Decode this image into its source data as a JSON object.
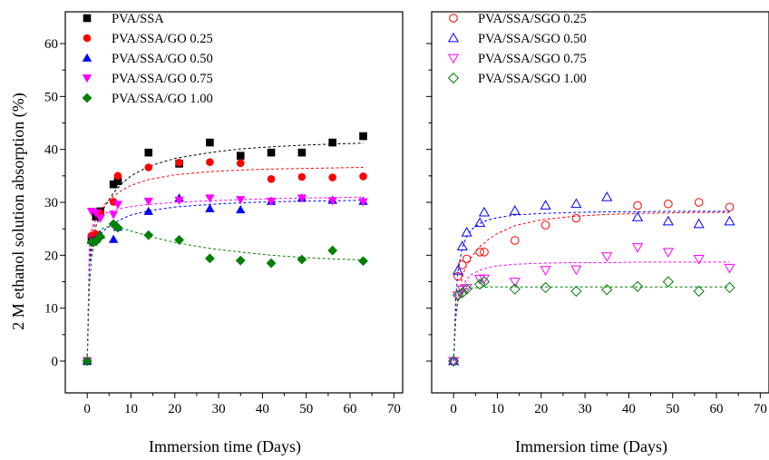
{
  "chart_data": [
    {
      "type": "scatter",
      "xlabel": "Immersion time (Days)",
      "ylabel": "2 M ethanol solution absorption (%)",
      "xlim": [
        -5,
        72
      ],
      "ylim": [
        -6,
        66
      ],
      "xticks": [
        0,
        10,
        20,
        30,
        40,
        50,
        60,
        70
      ],
      "yticks": [
        0,
        10,
        20,
        30,
        40,
        50,
        60
      ],
      "legend_position": "top-left",
      "series": [
        {
          "name": "PVA/SSA",
          "marker": "square",
          "filled": true,
          "color": "#000000",
          "x": [
            0,
            1,
            2,
            3,
            6,
            7,
            14,
            21,
            28,
            35,
            42,
            49,
            56,
            63
          ],
          "y": [
            0,
            23.2,
            27.3,
            28.3,
            33.4,
            34.0,
            39.4,
            37.3,
            41.3,
            38.8,
            39.4,
            39.4,
            41.3,
            42.5
          ],
          "fit": {
            "x": [
              0,
              0.5,
              1,
              2,
              3,
              4,
              6,
              8,
              10,
              14,
              20,
              28,
              35,
              42,
              49,
              56,
              63
            ],
            "y": [
              0,
              18.5,
              22.0,
              25.5,
              27.5,
              29.2,
              31.8,
              33.6,
              35.0,
              36.8,
              38.3,
              39.4,
              40.1,
              40.5,
              40.8,
              41.0,
              41.2
            ]
          }
        },
        {
          "name": "PVA/SSA/GO 0.25",
          "marker": "circle",
          "filled": true,
          "color": "#ff0000",
          "x": [
            0,
            1,
            2,
            3,
            6,
            7,
            14,
            21,
            28,
            35,
            42,
            49,
            56,
            63
          ],
          "y": [
            0,
            23.7,
            24.0,
            28.0,
            30.1,
            35.0,
            36.6,
            37.5,
            37.6,
            37.4,
            34.4,
            34.8,
            34.7,
            34.9
          ],
          "fit": {
            "x": [
              0,
              0.5,
              1,
              2,
              3,
              4,
              6,
              8,
              10,
              14,
              20,
              28,
              35,
              42,
              49,
              56,
              63
            ],
            "y": [
              0,
              19.5,
              23.5,
              27.0,
              28.5,
              29.6,
              31.2,
              32.3,
              33.2,
              34.3,
              35.2,
              35.8,
              36.1,
              36.3,
              36.4,
              36.5,
              36.6
            ]
          }
        },
        {
          "name": "PVA/SSA/GO 0.50",
          "marker": "triangle-up",
          "filled": true,
          "color": "#0000ff",
          "x": [
            0,
            1,
            2,
            3,
            6,
            7,
            14,
            21,
            28,
            35,
            42,
            49,
            56,
            63
          ],
          "y": [
            0,
            22.8,
            23.0,
            23.8,
            23.0,
            25.3,
            28.3,
            30.8,
            28.8,
            28.6,
            30.2,
            30.8,
            30.4,
            30.2
          ],
          "fit": {
            "x": [
              0,
              0.5,
              1,
              2,
              3,
              4,
              6,
              8,
              10,
              14,
              20,
              28,
              35,
              42,
              49,
              56,
              63
            ],
            "y": [
              0,
              18.0,
              21.0,
              23.0,
              24.0,
              24.8,
              26.0,
              26.9,
              27.6,
              28.4,
              29.1,
              29.6,
              29.9,
              30.1,
              30.2,
              30.3,
              30.4
            ]
          }
        },
        {
          "name": "PVA/SSA/GO 0.75",
          "marker": "triangle-down",
          "filled": true,
          "color": "#ff00ff",
          "x": [
            0,
            1,
            2,
            3,
            6,
            7,
            14,
            21,
            28,
            35,
            42,
            49,
            56,
            63
          ],
          "y": [
            0,
            28.3,
            28.0,
            27.0,
            27.7,
            29.6,
            30.2,
            30.4,
            30.8,
            30.5,
            30.2,
            30.8,
            30.3,
            30.1
          ],
          "fit": {
            "x": [
              0,
              0.5,
              1,
              2,
              3,
              4,
              6,
              8,
              10,
              14,
              20,
              28,
              35,
              42,
              49,
              56,
              63
            ],
            "y": [
              0,
              22.0,
              25.0,
              26.8,
              27.5,
              27.9,
              28.5,
              28.9,
              29.2,
              29.6,
              30.0,
              30.3,
              30.5,
              30.7,
              30.8,
              30.9,
              31.0
            ]
          }
        },
        {
          "name": "PVA/SSA/GO 1.00",
          "marker": "diamond",
          "filled": true,
          "color": "#008000",
          "x": [
            0,
            1,
            2,
            3,
            6,
            7,
            14,
            21,
            28,
            35,
            42,
            49,
            56,
            63
          ],
          "y": [
            0,
            22.5,
            22.6,
            23.5,
            25.9,
            25.2,
            23.8,
            22.9,
            19.4,
            19.0,
            18.5,
            19.2,
            20.9,
            18.9
          ],
          "fit": {
            "x": [
              0,
              0.5,
              1,
              2,
              3,
              4,
              6,
              8,
              10,
              14,
              20,
              28,
              35,
              42,
              49,
              56,
              63
            ],
            "y": [
              0,
              14.0,
              19.5,
              23.5,
              24.8,
              25.3,
              25.5,
              25.1,
              24.6,
              23.6,
              22.4,
              21.3,
              20.6,
              20.0,
              19.6,
              19.3,
              19.1
            ]
          }
        }
      ]
    },
    {
      "type": "scatter",
      "xlabel": "Immersion time (Days)",
      "ylabel": "",
      "xlim": [
        -5,
        72
      ],
      "ylim": [
        -6,
        66
      ],
      "xticks": [
        0,
        10,
        20,
        30,
        40,
        50,
        60,
        70
      ],
      "yticks": [
        0,
        10,
        20,
        30,
        40,
        50,
        60
      ],
      "legend_position": "top-left",
      "series": [
        {
          "name": "PVA/SSA/SGO 0.25",
          "marker": "circle",
          "filled": false,
          "color": "#ff0000",
          "x": [
            0,
            1,
            2,
            3,
            6,
            7,
            14,
            21,
            28,
            42,
            49,
            56,
            63
          ],
          "y": [
            0,
            16.0,
            18.2,
            19.3,
            20.6,
            20.6,
            22.8,
            25.7,
            27.0,
            29.4,
            29.7,
            30.0,
            29.1
          ],
          "fit": {
            "x": [
              0,
              0.5,
              1,
              2,
              3,
              4,
              6,
              8,
              10,
              14,
              20,
              28,
              35,
              42,
              49,
              56,
              63
            ],
            "y": [
              0,
              8.0,
              12.0,
              16.0,
              18.2,
              19.6,
              21.6,
              23.0,
              24.1,
              25.6,
              26.7,
              27.4,
              27.7,
              27.9,
              28.0,
              28.1,
              28.1
            ]
          }
        },
        {
          "name": "PVA/SSA/SGO 0.50",
          "marker": "triangle-up",
          "filled": false,
          "color": "#0000ff",
          "x": [
            0,
            1,
            2,
            3,
            6,
            7,
            14,
            21,
            28,
            35,
            42,
            49,
            56,
            63
          ],
          "y": [
            0,
            17.1,
            21.7,
            24.3,
            26.1,
            28.1,
            28.4,
            29.4,
            29.7,
            31.0,
            27.2,
            26.4,
            25.9,
            26.4
          ],
          "fit": {
            "x": [
              0,
              0.5,
              1,
              2,
              3,
              4,
              6,
              8,
              10,
              14,
              20,
              28,
              35,
              42,
              49,
              56,
              63
            ],
            "y": [
              0,
              12.0,
              17.0,
              21.5,
              23.5,
              24.8,
              26.0,
              26.7,
              27.1,
              27.6,
              27.9,
              28.1,
              28.2,
              28.2,
              28.3,
              28.3,
              28.3
            ]
          }
        },
        {
          "name": "PVA/SSA/SGO 0.75",
          "marker": "triangle-down",
          "filled": false,
          "color": "#ff00ff",
          "x": [
            0,
            1,
            2,
            3,
            6,
            7,
            14,
            21,
            28,
            35,
            42,
            49,
            56,
            63
          ],
          "y": [
            0,
            12.4,
            13.5,
            13.8,
            15.5,
            15.6,
            15.0,
            17.2,
            17.3,
            19.8,
            21.5,
            20.6,
            19.3,
            17.6
          ],
          "fit": {
            "x": [
              0,
              0.5,
              1,
              2,
              3,
              4,
              6,
              8,
              10,
              14,
              20,
              28,
              35,
              42,
              49,
              56,
              63
            ],
            "y": [
              0,
              8.0,
              11.2,
              14.0,
              15.5,
              16.3,
              17.2,
              17.7,
              18.0,
              18.3,
              18.5,
              18.6,
              18.6,
              18.7,
              18.7,
              18.7,
              18.7
            ]
          }
        },
        {
          "name": "PVA/SSA/SGO 1.00",
          "marker": "diamond",
          "filled": false,
          "color": "#008000",
          "x": [
            0,
            1,
            2,
            3,
            6,
            7,
            14,
            21,
            28,
            35,
            42,
            49,
            56,
            63
          ],
          "y": [
            0,
            12.4,
            12.9,
            13.6,
            14.5,
            15.0,
            13.6,
            13.9,
            13.2,
            13.5,
            14.1,
            15.0,
            13.2,
            13.9
          ],
          "fit": {
            "x": [
              0,
              0.5,
              1,
              2,
              3,
              4,
              6,
              8,
              10,
              14,
              20,
              28,
              35,
              42,
              49,
              56,
              63
            ],
            "y": [
              0,
              9.0,
              11.8,
              13.2,
              13.6,
              13.8,
              13.9,
              14.0,
              14.0,
              14.0,
              14.0,
              14.0,
              14.0,
              14.0,
              14.0,
              14.0,
              14.0
            ]
          }
        }
      ]
    }
  ]
}
